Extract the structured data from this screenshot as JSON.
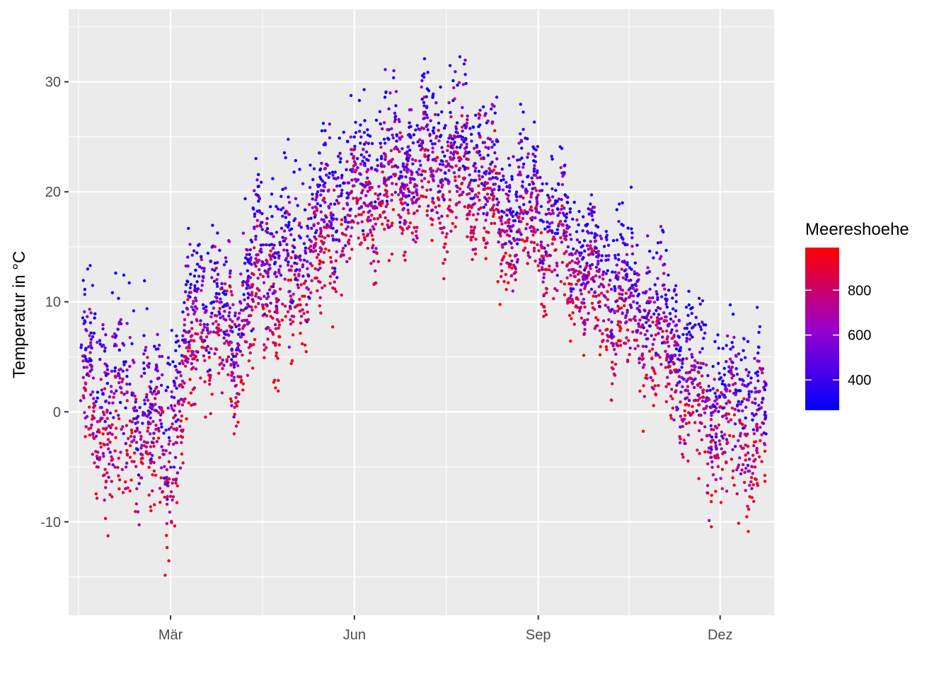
{
  "chart_data": {
    "type": "scatter",
    "title": "",
    "xlabel": "",
    "ylabel": "Temperatur in °C",
    "x_domain": [
      "2000-01-10",
      "2000-12-28"
    ],
    "x_ticks": [
      {
        "date": "2000-03-01",
        "label": "Mär"
      },
      {
        "date": "2000-06-01",
        "label": "Jun"
      },
      {
        "date": "2000-09-01",
        "label": "Sep"
      },
      {
        "date": "2000-12-01",
        "label": "Dez"
      }
    ],
    "ylim": [
      -18.5,
      36.6
    ],
    "y_ticks": [
      -10,
      0,
      10,
      20,
      30
    ],
    "y_tick_labels": [
      "-10",
      "0",
      "10",
      "20",
      "30"
    ],
    "grid": true,
    "panel_background": "#ebebeb",
    "grid_color": "#ffffff",
    "data_start": "2000-01-16",
    "data_end": "2000-12-24",
    "series_envelope": {
      "description_dates": [
        "2000-01-16",
        "2000-02-01",
        "2000-02-15",
        "2000-03-01",
        "2000-03-15",
        "2000-04-01",
        "2000-04-15",
        "2000-05-01",
        "2000-05-15",
        "2000-06-01",
        "2000-06-15",
        "2000-07-01",
        "2000-07-15",
        "2000-08-01",
        "2000-08-15",
        "2000-09-01",
        "2000-09-15",
        "2000-10-01",
        "2000-10-15",
        "2000-11-01",
        "2000-11-15",
        "2000-12-01",
        "2000-12-15",
        "2000-12-24"
      ],
      "upper": [
        12,
        13,
        13,
        8,
        20,
        17,
        23,
        24,
        26,
        28,
        32,
        30,
        33,
        34,
        26,
        28,
        22,
        19,
        20,
        16,
        10,
        8,
        10,
        7
      ],
      "mean": [
        3,
        0,
        -1,
        -2,
        10,
        6,
        14,
        12,
        17,
        20,
        21,
        22,
        22,
        22,
        18,
        18,
        15,
        12,
        10,
        8,
        3,
        0,
        0,
        -2
      ],
      "lower": [
        -8,
        -13,
        -10,
        -16,
        0,
        -2,
        4,
        2,
        8,
        10,
        12,
        14,
        12,
        14,
        10,
        9,
        7,
        3,
        1,
        -3,
        -8,
        -10,
        -10,
        -11
      ]
    },
    "color_scale": {
      "name": "Meereshoehe",
      "low_color": "#0000ff",
      "mid_color": "#9900cc",
      "high_color": "#ff0000",
      "range": [
        265,
        990
      ],
      "tick_values": [
        400,
        600,
        800
      ],
      "tick_labels": [
        "400",
        "600",
        "800"
      ]
    },
    "legend_position": "right"
  }
}
